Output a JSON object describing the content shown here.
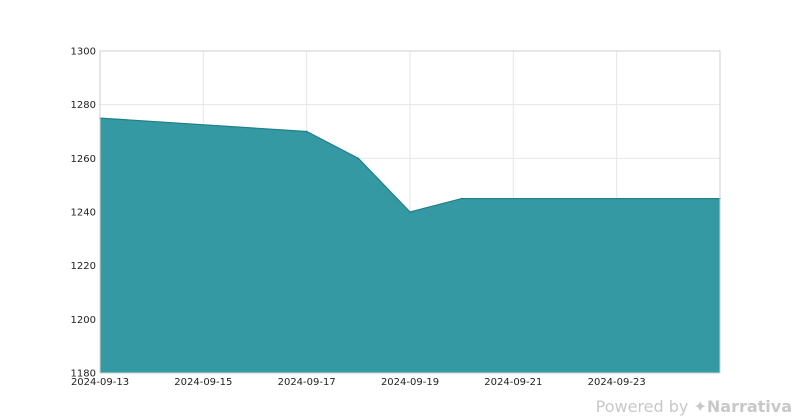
{
  "chart_data": {
    "type": "area",
    "x": [
      "2024-09-13",
      "2024-09-17",
      "2024-09-18",
      "2024-09-19",
      "2024-09-20",
      "2024-09-25"
    ],
    "series": [
      {
        "values": [
          1275,
          1270,
          1260,
          1240,
          1245,
          1245
        ]
      }
    ],
    "xlim": [
      "2024-09-13",
      "2024-09-25"
    ],
    "ylim": [
      1180,
      1300
    ],
    "x_ticks": [
      "2024-09-13",
      "2024-09-15",
      "2024-09-17",
      "2024-09-19",
      "2024-09-21",
      "2024-09-23"
    ],
    "y_ticks": [
      1180,
      1200,
      1220,
      1240,
      1260,
      1280,
      1300
    ],
    "grid": true,
    "fill_color": "#2a949f",
    "line_color": "#1f7f8a",
    "title": "",
    "xlabel": "",
    "ylabel": ""
  },
  "watermark": {
    "prefix": "Powered by",
    "brand": "Narrativa"
  }
}
